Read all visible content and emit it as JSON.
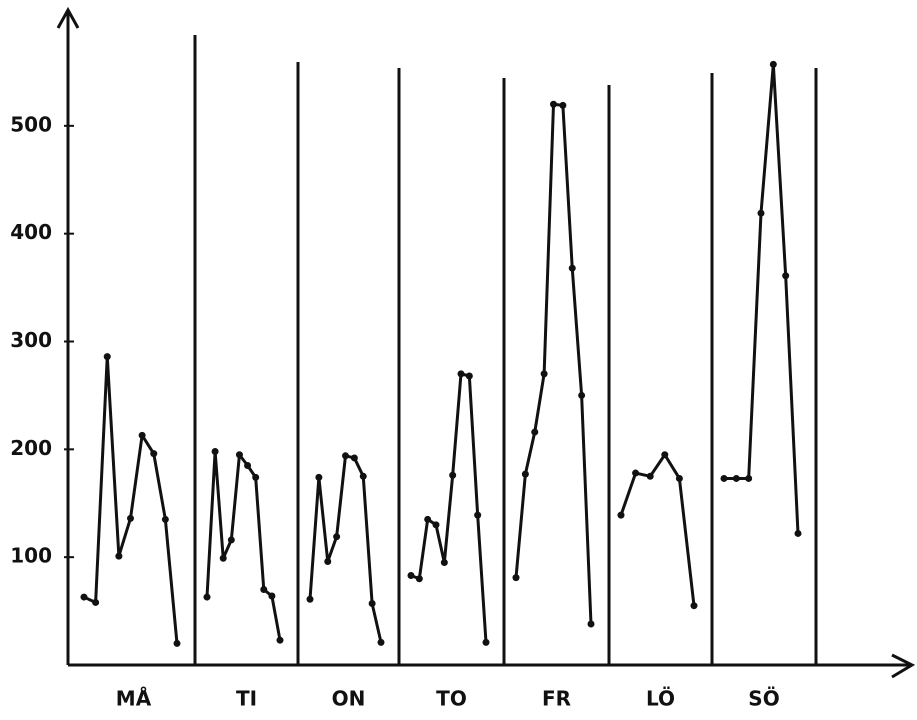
{
  "chart_data": {
    "type": "line",
    "color": "#111111",
    "ylim": [
      0,
      600
    ],
    "yticks": [
      100,
      200,
      300,
      400,
      500
    ],
    "series": [
      {
        "name": "MÅ",
        "values": [
          63,
          58,
          286,
          101,
          136,
          213,
          196,
          135,
          20
        ]
      },
      {
        "name": "TI",
        "values": [
          63,
          198,
          99,
          116,
          195,
          185,
          174,
          70,
          64,
          23
        ]
      },
      {
        "name": "ON",
        "values": [
          61,
          174,
          96,
          119,
          194,
          192,
          175,
          57,
          21
        ]
      },
      {
        "name": "TO",
        "values": [
          83,
          80,
          135,
          130,
          95,
          176,
          270,
          268,
          139,
          21
        ]
      },
      {
        "name": "FR",
        "values": [
          81,
          177,
          216,
          270,
          520,
          519,
          368,
          250,
          38
        ]
      },
      {
        "name": "LÖ",
        "values": [
          139,
          178,
          175,
          195,
          173,
          55
        ]
      },
      {
        "name": "SÖ",
        "values": [
          173,
          173,
          173,
          419,
          557,
          361,
          122
        ]
      }
    ]
  }
}
